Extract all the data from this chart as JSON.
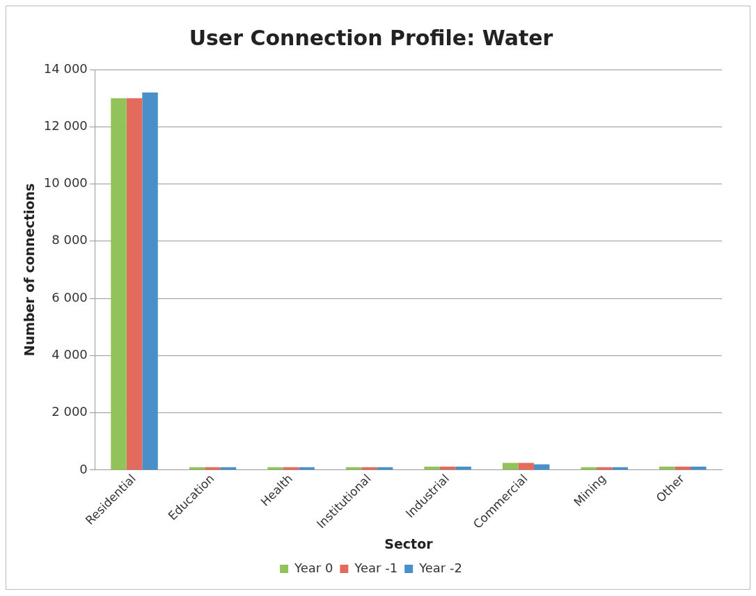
{
  "chart_data": {
    "type": "bar",
    "title": "User Connection Profile: Water",
    "xlabel": "Sector",
    "ylabel": "Number of connections",
    "categories": [
      "Residential",
      "Education",
      "Health",
      "Institutional",
      "Industrial",
      "Commercial",
      "Mining",
      "Other"
    ],
    "series": [
      {
        "name": "Year 0",
        "color": "#92c25a",
        "values": [
          13000,
          100,
          100,
          100,
          120,
          250,
          100,
          120
        ]
      },
      {
        "name": "Year -1",
        "color": "#e26b5d",
        "values": [
          13000,
          100,
          100,
          100,
          120,
          250,
          100,
          120
        ]
      },
      {
        "name": "Year -2",
        "color": "#4a90c8",
        "values": [
          13200,
          100,
          100,
          100,
          120,
          200,
          100,
          120
        ]
      }
    ],
    "ylim": [
      0,
      14000
    ],
    "yticks": [
      0,
      {
        "value": 2000,
        "label": "2 000"
      },
      {
        "value": 4000,
        "label": "4 000"
      },
      {
        "value": 6000,
        "label": "6 000"
      },
      {
        "value": 8000,
        "label": "8 000"
      },
      {
        "value": 10000,
        "label": "10 000"
      },
      {
        "value": 12000,
        "label": "12 000"
      },
      {
        "value": 14000,
        "label": "14 000"
      }
    ],
    "grid": "y",
    "legend": "bottom"
  }
}
